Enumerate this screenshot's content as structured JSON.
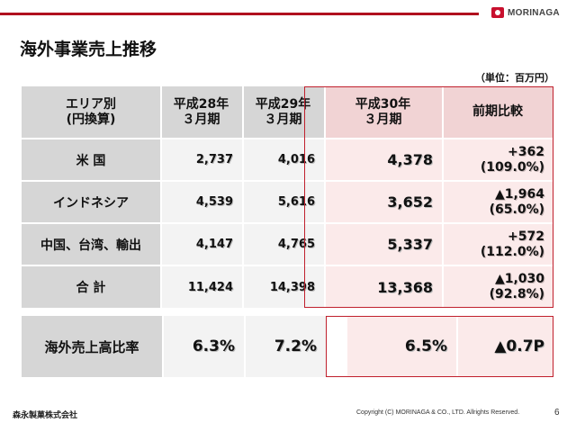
{
  "header": {
    "logo_text": "MORINAGA"
  },
  "title": "海外事業売上推移",
  "unit_note": "（単位：百万円）",
  "table": {
    "headers": [
      "エリア別\n(円換算)",
      "平成28年\n３月期",
      "平成29年\n３月期",
      "平成30年\n３月期",
      "前期比較"
    ],
    "rows": [
      {
        "label": "米 国",
        "v1": "2,737",
        "v2": "4,016",
        "v3": "4,378",
        "change1": "+362",
        "change2": "(109.0%)"
      },
      {
        "label": "インドネシア",
        "v1": "4,539",
        "v2": "5,616",
        "v3": "3,652",
        "change1": "▲1,964",
        "change2": "(65.0%)"
      },
      {
        "label": "中国、台湾、輸出",
        "v1": "4,147",
        "v2": "4,765",
        "v3": "5,337",
        "change1": "+572",
        "change2": "(112.0%)"
      },
      {
        "label": "合 計",
        "v1": "11,424",
        "v2": "14,398",
        "v3": "13,368",
        "change1": "▲1,030",
        "change2": "(92.8%)"
      }
    ]
  },
  "ratio": {
    "label": "海外売上高比率",
    "v1": "6.3%",
    "v2": "7.2%",
    "v3": "6.5%",
    "change": "▲0.7P"
  },
  "footer": {
    "company": "森永製菓株式会社",
    "copyright": "Copyright (C) MORINAGA & CO., LTD. Allrights Reserved.",
    "page": "6"
  },
  "colors": {
    "accent": "#b0101e",
    "header_gray": "#d6d6d6",
    "pink": "#fbeaea"
  }
}
